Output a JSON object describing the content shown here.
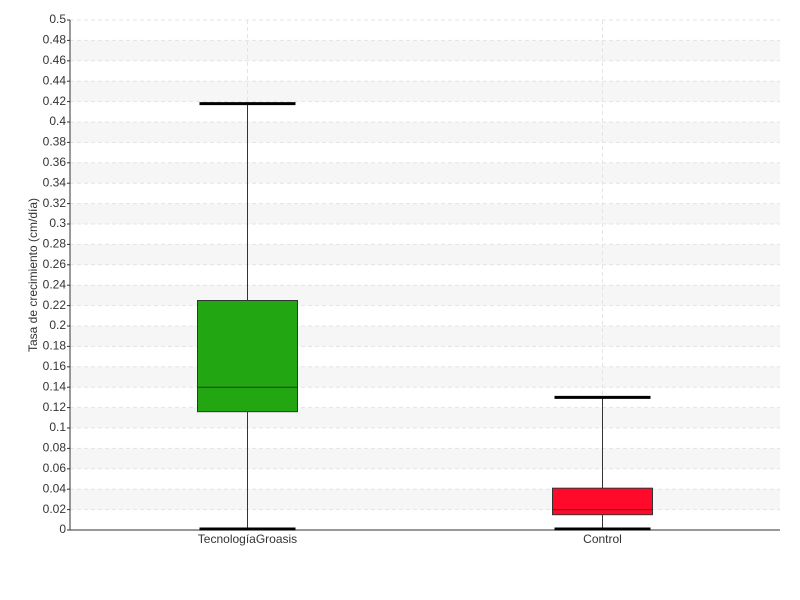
{
  "chart_data": {
    "type": "box",
    "ylabel": "Tasa de crecimiento (cm/día)",
    "categories": [
      "TecnologíaGroasis",
      "Control"
    ],
    "boxes": [
      {
        "min": 0,
        "q1": 0.116,
        "median": 0.14,
        "q3": 0.225,
        "max": 0.418,
        "color": "#22a612"
      },
      {
        "min": 0,
        "q1": 0.015,
        "median": 0.02,
        "q3": 0.041,
        "max": 0.13,
        "color": "#ff0a2a"
      }
    ],
    "ylim": [
      0,
      0.5
    ],
    "yticks": [
      0,
      0.02,
      0.04,
      0.06,
      0.08,
      0.1,
      0.12,
      0.14,
      0.16,
      0.18,
      0.2,
      0.22,
      0.24,
      0.26,
      0.28,
      0.3,
      0.32,
      0.34,
      0.36,
      0.38,
      0.4,
      0.42,
      0.44,
      0.46,
      0.48,
      0.5
    ],
    "grid": true
  }
}
